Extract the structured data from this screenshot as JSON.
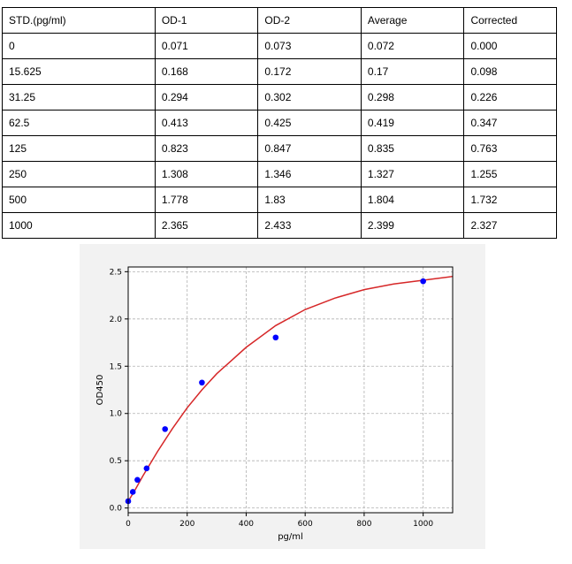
{
  "table": {
    "headers": [
      "STD.(pg/ml)",
      "OD-1",
      "OD-2",
      "Average",
      "Corrected"
    ],
    "rows": [
      [
        "0",
        "0.071",
        "0.073",
        "0.072",
        "0.000"
      ],
      [
        "15.625",
        "0.168",
        "0.172",
        "0.17",
        "0.098"
      ],
      [
        "31.25",
        "0.294",
        "0.302",
        "0.298",
        "0.226"
      ],
      [
        "62.5",
        "0.413",
        "0.425",
        "0.419",
        "0.347"
      ],
      [
        "125",
        "0.823",
        "0.847",
        "0.835",
        "0.763"
      ],
      [
        "250",
        "1.308",
        "1.346",
        "1.327",
        "1.255"
      ],
      [
        "500",
        "1.778",
        "1.83",
        "1.804",
        "1.732"
      ],
      [
        "1000",
        "2.365",
        "2.433",
        "2.399",
        "2.327"
      ]
    ]
  },
  "chart_data": {
    "type": "scatter",
    "title": "",
    "xlabel": "pg/ml",
    "ylabel": "OD450",
    "xlim": [
      0,
      1100
    ],
    "ylim": [
      -0.05,
      2.55
    ],
    "x_ticks": [
      0,
      200,
      400,
      600,
      800,
      1000
    ],
    "y_ticks": [
      0.0,
      0.5,
      1.0,
      1.5,
      2.0,
      2.5
    ],
    "x_tick_labels": [
      "0",
      "200",
      "400",
      "600",
      "800",
      "1000"
    ],
    "y_tick_labels": [
      "0.0",
      "0.5",
      "1.0",
      "1.5",
      "2.0",
      "2.5"
    ],
    "grid": true,
    "series": [
      {
        "kind": "points",
        "color": "#0000ff",
        "x": [
          0,
          15.625,
          31.25,
          62.5,
          125,
          250,
          500,
          1000
        ],
        "y": [
          0.072,
          0.17,
          0.298,
          0.419,
          0.835,
          1.327,
          1.804,
          2.399
        ]
      },
      {
        "kind": "fitted-curve",
        "color": "#d62728",
        "x": [
          0,
          25,
          50,
          100,
          150,
          200,
          250,
          300,
          400,
          500,
          600,
          700,
          800,
          900,
          1000,
          1100
        ],
        "y": [
          0.07,
          0.2,
          0.34,
          0.6,
          0.84,
          1.06,
          1.25,
          1.42,
          1.7,
          1.93,
          2.1,
          2.22,
          2.31,
          2.37,
          2.41,
          2.45
        ]
      }
    ]
  }
}
